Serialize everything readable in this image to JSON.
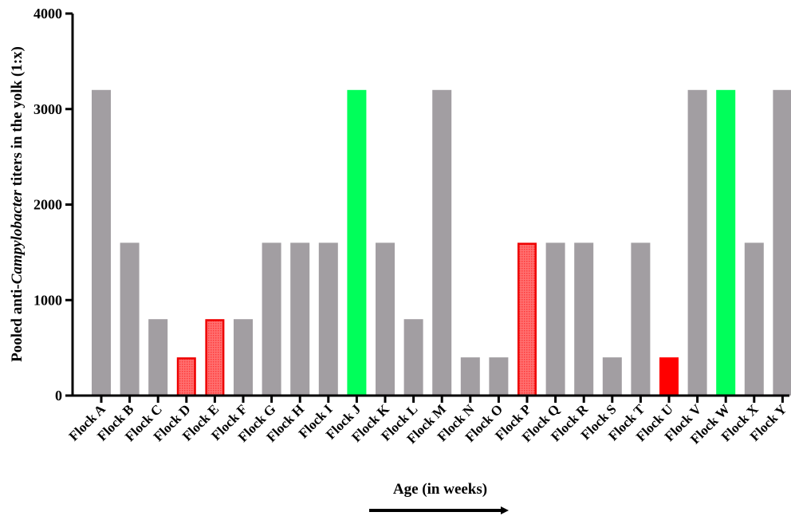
{
  "chart_data": {
    "type": "bar",
    "categories": [
      "Flock A",
      "Flock B",
      "Flock C",
      "Flock D",
      "Flock E",
      "Flock F",
      "Flock G",
      "Flock H",
      "Flock I",
      "Flock J",
      "Flock K",
      "Flock L",
      "Flock M",
      "Flock N",
      "Flock O",
      "Flock P",
      "Flock Q",
      "Flock R",
      "Flock S",
      "Flock T",
      "Flock U",
      "Flock V",
      "Flock W",
      "Flock X",
      "Flock Y"
    ],
    "values": [
      3200,
      1600,
      800,
      400,
      800,
      800,
      1600,
      1600,
      1600,
      3200,
      1600,
      800,
      3200,
      400,
      400,
      1600,
      1600,
      1600,
      400,
      1600,
      400,
      3200,
      3200,
      1600,
      3200
    ],
    "bar_styles": [
      "gray",
      "gray",
      "gray",
      "red-hatched",
      "red-hatched",
      "gray",
      "gray",
      "gray",
      "gray",
      "green",
      "gray",
      "gray",
      "gray",
      "gray",
      "gray",
      "red-hatched",
      "gray",
      "gray",
      "gray",
      "gray",
      "red",
      "gray",
      "green",
      "gray",
      "gray"
    ],
    "colors": {
      "gray": "#a29ea2",
      "green": "#00ff5a",
      "red": "#ff0000",
      "red_hatched_fill": "#ff6a6a",
      "red_hatched_edge": "#ee0000"
    },
    "ylim": [
      0,
      4000
    ],
    "yticks": [
      0,
      1000,
      2000,
      3000,
      4000
    ],
    "ylabel_parts": [
      "Pooled anti-",
      "Campylobacter",
      " titers in the yolk (1:x)"
    ],
    "xlabel": "Age (in weeks)",
    "title": "",
    "grid": false,
    "legend": "none"
  }
}
